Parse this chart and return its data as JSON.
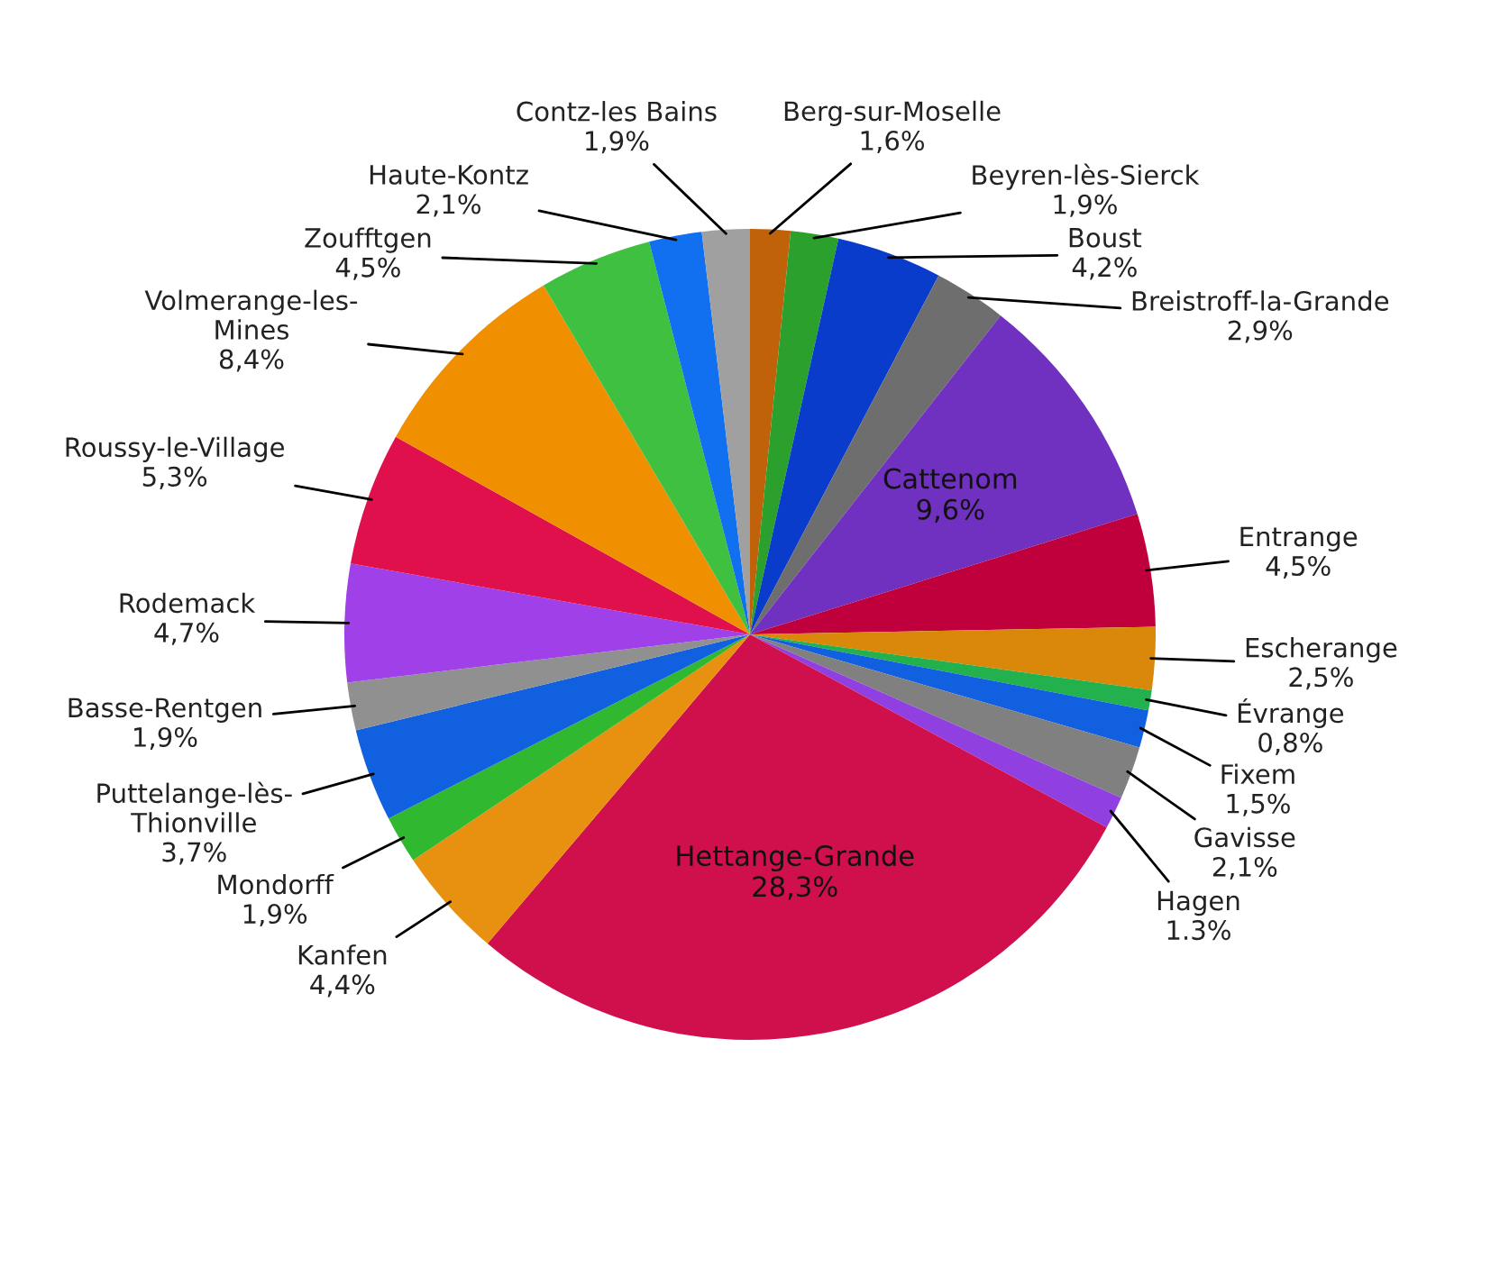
{
  "chart_data": {
    "type": "pie",
    "categories": [
      "Berg-sur-Moselle",
      "Beyren-lès-Sierck",
      "Boust",
      "Breistroff-la-Grande",
      "Cattenom",
      "Entrange",
      "Escherange",
      "Évrange",
      "Fixem",
      "Gavisse",
      "Hagen",
      "Hettange-Grande",
      "Kanfen",
      "Mondorff",
      "Puttelange-lès-\nThionville",
      "Basse-Rentgen",
      "Rodemack",
      "Roussy-le-Village",
      "Volmerange-les-\nMines",
      "Zoufftgen",
      "Haute-Kontz",
      "Contz-les Bains"
    ],
    "values": [
      1.6,
      1.9,
      4.2,
      2.9,
      9.6,
      4.5,
      2.5,
      0.8,
      1.5,
      2.1,
      1.3,
      28.3,
      4.4,
      1.9,
      3.7,
      1.9,
      4.7,
      5.3,
      8.4,
      4.5,
      2.1,
      1.9
    ],
    "value_labels": [
      "1,6%",
      "1,9%",
      "4,2%",
      "2,9%",
      "9,6%",
      "4,5%",
      "2,5%",
      "0,8%",
      "1,5%",
      "2,1%",
      "1.3%",
      "28,3%",
      "4,4%",
      "1,9%",
      "3,7%",
      "1,9%",
      "4,7%",
      "5,3%",
      "8,4%",
      "4,5%",
      "2,1%",
      "1,9%"
    ],
    "colors": [
      "#c0620a",
      "#2ca02c",
      "#0a3ccc",
      "#6e6e6e",
      "#7030c0",
      "#c0003c",
      "#d9880a",
      "#22b14c",
      "#1060e0",
      "#808080",
      "#9040e0",
      "#d0104c",
      "#e89010",
      "#30b830",
      "#1060e0",
      "#909090",
      "#a040e8",
      "#e0104c",
      "#f09000",
      "#40c040",
      "#1070f0",
      "#a0a0a0"
    ],
    "legend": false
  }
}
